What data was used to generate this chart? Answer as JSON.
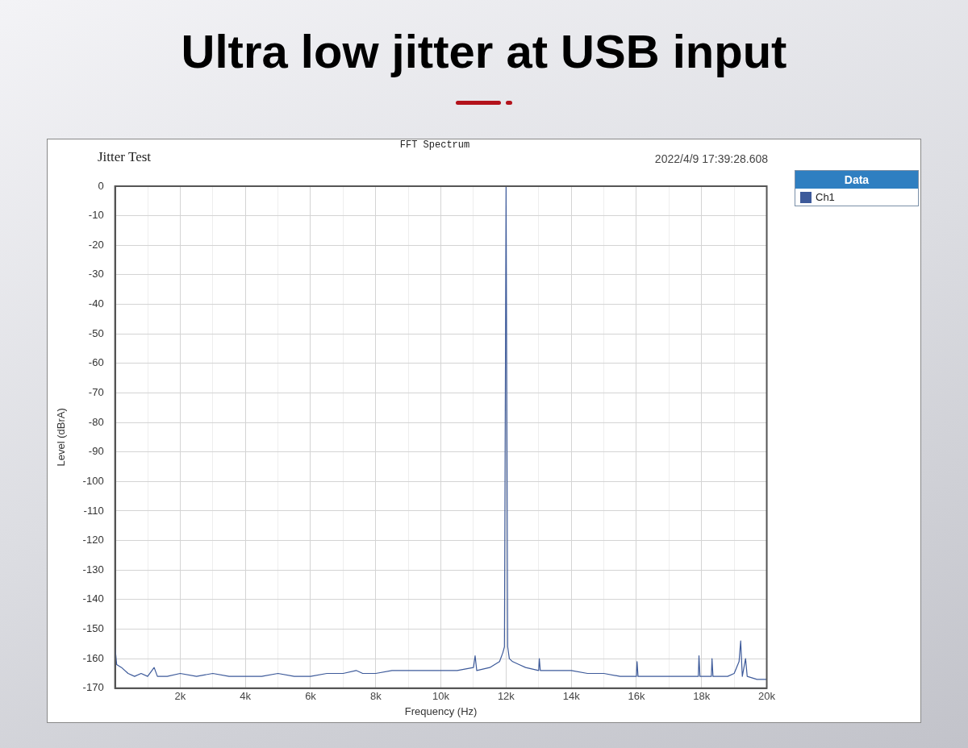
{
  "chart_data": {
    "type": "line",
    "title": "Ultra low jitter at USB input",
    "subtitle": "FFT Spectrum",
    "annotations": [
      "Jitter Test",
      "2022/4/9 17:39:28.608"
    ],
    "xlabel": "Frequency (Hz)",
    "ylabel": "Level (dBrA)",
    "legend_title": "Data",
    "legend": "right",
    "grid": true,
    "xlim": [
      0,
      20000
    ],
    "xticks": [
      {
        "value": 1000,
        "label": null
      },
      {
        "value": 2000,
        "label": "2k"
      },
      {
        "value": 3000,
        "label": null
      },
      {
        "value": 4000,
        "label": "4k"
      },
      {
        "value": 5000,
        "label": null
      },
      {
        "value": 6000,
        "label": "6k"
      },
      {
        "value": 7000,
        "label": null
      },
      {
        "value": 8000,
        "label": "8k"
      },
      {
        "value": 9000,
        "label": null
      },
      {
        "value": 10000,
        "label": "10k"
      },
      {
        "value": 11000,
        "label": null
      },
      {
        "value": 12000,
        "label": "12k"
      },
      {
        "value": 13000,
        "label": null
      },
      {
        "value": 14000,
        "label": "14k"
      },
      {
        "value": 15000,
        "label": null
      },
      {
        "value": 16000,
        "label": "16k"
      },
      {
        "value": 17000,
        "label": null
      },
      {
        "value": 18000,
        "label": "18k"
      },
      {
        "value": 19000,
        "label": null
      },
      {
        "value": 20000,
        "label": "20k"
      }
    ],
    "ylim": [
      -170,
      0
    ],
    "yticks": [
      -170,
      -160,
      -150,
      -140,
      -130,
      -120,
      -110,
      -100,
      -90,
      -80,
      -70,
      -60,
      -50,
      -40,
      -30,
      -20,
      -10,
      0
    ],
    "series": [
      {
        "name": "Ch1",
        "color": "#3d5a9a",
        "x": [
          0,
          50,
          200,
          400,
          600,
          800,
          1000,
          1200,
          1300,
          1600,
          2000,
          2500,
          3000,
          3500,
          4000,
          4500,
          5000,
          5500,
          6000,
          6500,
          7000,
          7400,
          7600,
          8000,
          8500,
          9000,
          9500,
          10000,
          10500,
          11000,
          11050,
          11100,
          11500,
          11800,
          11900,
          11950,
          12000,
          12050,
          12100,
          12200,
          12400,
          12600,
          13000,
          13020,
          13050,
          13500,
          14000,
          14500,
          15000,
          15500,
          16000,
          16020,
          16050,
          16500,
          17000,
          17500,
          17900,
          17920,
          17950,
          18300,
          18320,
          18350,
          18800,
          19000,
          19150,
          19200,
          19250,
          19350,
          19400,
          19700,
          20000
        ],
        "values": [
          -156,
          -162,
          -163,
          -165,
          -166,
          -165,
          -166,
          -163,
          -166,
          -166,
          -165,
          -166,
          -165,
          -166,
          -166,
          -166,
          -165,
          -166,
          -166,
          -165,
          -165,
          -164,
          -165,
          -165,
          -164,
          -164,
          -164,
          -164,
          -164,
          -163,
          -159,
          -164,
          -163,
          -161,
          -158,
          -156,
          0,
          -156,
          -160,
          -161,
          -162,
          -163,
          -164,
          -160,
          -164,
          -164,
          -164,
          -165,
          -165,
          -166,
          -166,
          -161,
          -166,
          -166,
          -166,
          -166,
          -166,
          -159,
          -166,
          -166,
          -160,
          -166,
          -166,
          -165,
          -161,
          -154,
          -166,
          -160,
          -166,
          -167,
          -167
        ]
      }
    ]
  }
}
